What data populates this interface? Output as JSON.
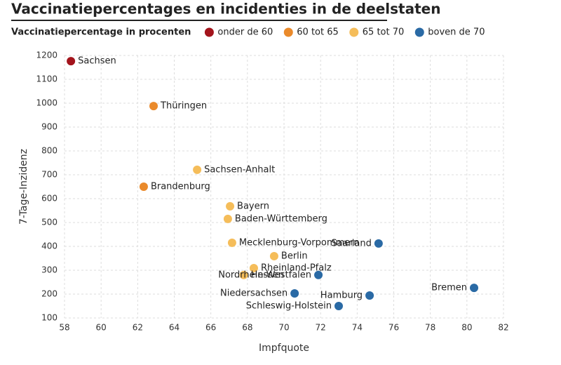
{
  "chart_data": {
    "type": "scatter",
    "title": "Vaccinatiepercentages en incidenties in de deelstaten",
    "legend_title": "Vaccinatiepercentage in procenten",
    "x_label": "Impfquote",
    "y_label": "7-Tage-Inzidenz",
    "xlim": [
      58,
      82
    ],
    "xticks": [
      58,
      60,
      62,
      64,
      66,
      68,
      70,
      72,
      74,
      76,
      78,
      80,
      82
    ],
    "ylim": [
      100,
      1200
    ],
    "yticks": [
      100,
      200,
      300,
      400,
      500,
      600,
      700,
      800,
      900,
      1000,
      1100,
      1200
    ],
    "grid": true,
    "series": [
      {
        "name": "onder de 60",
        "color": "#a3141c",
        "x": [
          58.35
        ],
        "values": [
          1176
        ],
        "labels": [
          "Sachsen"
        ]
      },
      {
        "name": "60 tot 65",
        "color": "#ea8a2b",
        "x": [
          62.87,
          62.33
        ],
        "values": [
          988,
          650
        ],
        "labels": [
          "Thüringen",
          "Brandenburg"
        ]
      },
      {
        "name": "65 tot 70",
        "color": "#f5bd5a",
        "x": [
          65.25,
          67.05,
          66.93,
          67.16,
          69.46,
          68.35,
          67.8
        ],
        "values": [
          721,
          568,
          515,
          415,
          359,
          309,
          280
        ],
        "labels": [
          "Sachsen-Anhalt",
          "Bayern",
          "Baden-Württemberg",
          "Mecklenburg-Vorpommern",
          "Berlin",
          "Rheinland-Pfalz",
          "Hessen"
        ]
      },
      {
        "name": "boven de 70",
        "color": "#2a6aa5",
        "x": [
          71.88,
          75.17,
          70.58,
          74.68,
          72.99,
          80.39
        ],
        "values": [
          280,
          412,
          203,
          194,
          150,
          226
        ],
        "labels": [
          "Nordrhein-Westfalen",
          "Saarland",
          "Niedersachsen",
          "Hamburg",
          "Schleswig-Holstein",
          "Bremen"
        ]
      }
    ]
  }
}
